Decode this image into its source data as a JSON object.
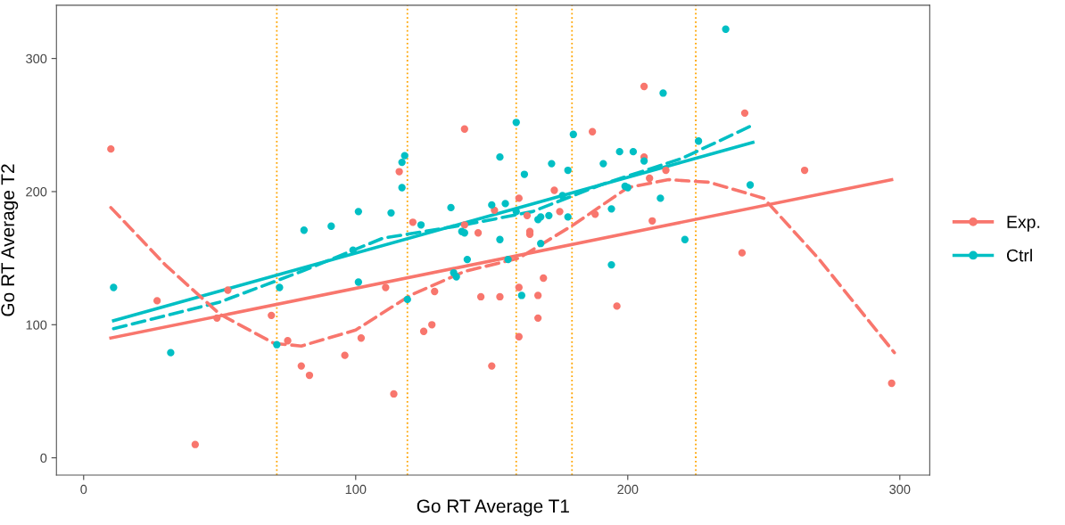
{
  "chart_data": {
    "type": "scatter",
    "xlabel": "Go RT Average T1",
    "ylabel": "Go RT Average T2",
    "xlim": [
      -10,
      311
    ],
    "ylim": [
      -13,
      340
    ],
    "xticks": [
      0,
      100,
      200,
      300
    ],
    "yticks": [
      0,
      100,
      200,
      300
    ],
    "grid": false,
    "legend": "right",
    "series": [
      {
        "name": "Exp.",
        "marker": "circle",
        "color": "#f8766d",
        "x": [
          10,
          27,
          41,
          49,
          53,
          69,
          75,
          80,
          83,
          96,
          102,
          111,
          114,
          116,
          121,
          125,
          128,
          129,
          140,
          140,
          145,
          146,
          150,
          151,
          153,
          160,
          160,
          160,
          163,
          164,
          164,
          167,
          167,
          169,
          173,
          175,
          187,
          188,
          196,
          206,
          206,
          208,
          209,
          214,
          242,
          243,
          265,
          297
        ],
        "values": [
          232,
          118,
          10,
          105,
          126,
          107,
          88,
          69,
          62,
          77,
          90,
          128,
          48,
          215,
          177,
          95,
          100,
          125,
          247,
          175,
          169,
          121,
          69,
          186,
          121,
          195,
          128,
          91,
          182,
          170,
          168,
          105,
          122,
          135,
          201,
          185,
          245,
          183,
          114,
          279,
          226,
          210,
          178,
          216,
          154,
          259,
          216,
          56
        ]
      },
      {
        "name": "Ctrl",
        "marker": "circle",
        "color": "#00bfc4",
        "x": [
          11,
          32,
          71,
          72,
          81,
          91,
          99,
          101,
          101,
          113,
          117,
          117,
          118,
          119,
          124,
          135,
          136,
          137,
          139,
          140,
          141,
          150,
          153,
          153,
          155,
          156,
          159,
          159,
          161,
          162,
          167,
          168,
          168,
          171,
          172,
          176,
          178,
          178,
          180,
          191,
          194,
          194,
          197,
          199,
          200,
          202,
          206,
          212,
          213,
          221,
          226,
          236,
          245
        ],
        "values": [
          128,
          79,
          85,
          128,
          171,
          174,
          156,
          185,
          132,
          184,
          203,
          222,
          227,
          119,
          175,
          188,
          139,
          136,
          170,
          169,
          149,
          190,
          226,
          164,
          191,
          149,
          252,
          185,
          122,
          213,
          179,
          181,
          161,
          182,
          221,
          197,
          216,
          181,
          243,
          221,
          145,
          187,
          230,
          204,
          203,
          230,
          223,
          195,
          274,
          164,
          238,
          322,
          205
        ]
      },
      {
        "type": "line",
        "color": "#f8766d",
        "line_style": "solid",
        "x": [
          10,
          297
        ],
        "values": [
          90,
          209
        ]
      },
      {
        "type": "line",
        "color": "#00bfc4",
        "line_style": "solid",
        "x": [
          11,
          246
        ],
        "values": [
          103,
          237
        ]
      },
      {
        "type": "line",
        "color": "#00bfc4",
        "line_style": "dashed",
        "x": [
          11,
          50,
          80,
          110,
          140,
          165,
          190,
          220,
          246
        ],
        "values": [
          97,
          117,
          140,
          165,
          175,
          185,
          205,
          225,
          250
        ]
      },
      {
        "type": "line",
        "color": "#f8766d",
        "line_style": "dashed",
        "x": [
          10,
          30,
          50,
          70,
          80,
          100,
          120,
          140,
          160,
          180,
          200,
          215,
          230,
          250,
          270,
          298
        ],
        "values": [
          188,
          145,
          108,
          86,
          84,
          96,
          122,
          140,
          150,
          175,
          203,
          209,
          207,
          195,
          150,
          79
        ]
      }
    ],
    "ref_lines": [
      {
        "axis": "x",
        "value": 71,
        "color": "#ffa500",
        "line_style": "dotted"
      },
      {
        "axis": "x",
        "value": 119,
        "color": "#ffa500",
        "line_style": "dotted"
      },
      {
        "axis": "x",
        "value": 159,
        "color": "#ffa500",
        "line_style": "dotted"
      },
      {
        "axis": "x",
        "value": 179.5,
        "color": "#ffa500",
        "line_style": "dotted"
      },
      {
        "axis": "x",
        "value": 225,
        "color": "#ffa500",
        "line_style": "dotted"
      }
    ]
  }
}
